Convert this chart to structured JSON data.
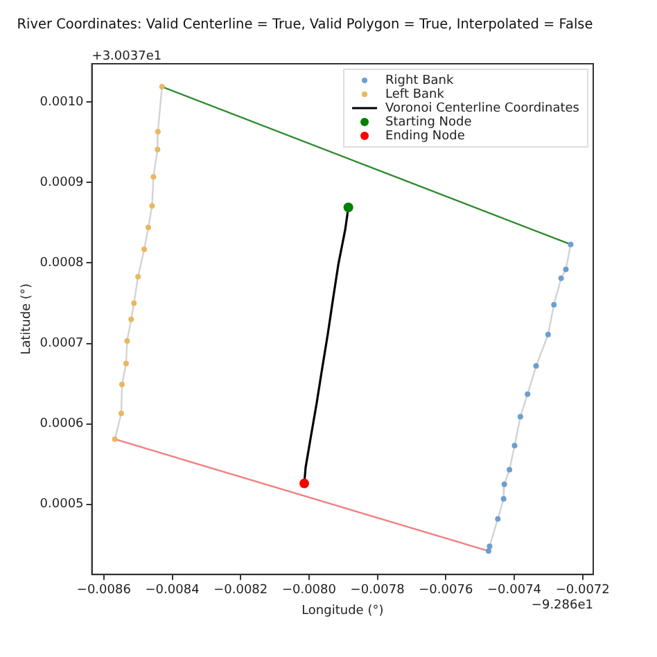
{
  "chart_data": {
    "type": "scatter",
    "title": "River Coordinates: Valid Centerline = True, Valid Polygon = True, Interpolated = False",
    "xlabel": "Longitude (°)",
    "ylabel": "Latitude (°)",
    "annotations": [
      "+3.0037e1",
      "−9.286e1"
    ],
    "xlim": [
      -0.008635,
      -0.007169
    ],
    "ylim": [
      0.000413,
      0.0010475
    ],
    "xticks": [
      {
        "value": -0.0086,
        "label": "−0.0086"
      },
      {
        "value": -0.0084,
        "label": "−0.0084"
      },
      {
        "value": -0.0082,
        "label": "−0.0082"
      },
      {
        "value": -0.008,
        "label": "−0.0080"
      },
      {
        "value": -0.0078,
        "label": "−0.0078"
      },
      {
        "value": -0.0076,
        "label": "−0.0076"
      },
      {
        "value": -0.0074,
        "label": "−0.0074"
      },
      {
        "value": -0.0072,
        "label": "−0.0072"
      }
    ],
    "yticks": [
      {
        "value": 0.0005,
        "label": "0.0005"
      },
      {
        "value": 0.0006,
        "label": "0.0006"
      },
      {
        "value": 0.0007,
        "label": "0.0007"
      },
      {
        "value": 0.0008,
        "label": "0.0008"
      },
      {
        "value": 0.0009,
        "label": "0.0009"
      },
      {
        "value": 0.001,
        "label": "0.0010"
      }
    ],
    "grid": false,
    "legend": "top right",
    "series": [
      {
        "type": "line",
        "color": "#d3d3d3",
        "marker": "none",
        "x": [
          -0.00843,
          -0.008442,
          -0.008443,
          -0.008455,
          -0.008459,
          -0.00847,
          -0.008482,
          -0.0085,
          -0.008512,
          -0.00852,
          -0.008532,
          -0.008535,
          -0.008547,
          -0.008549,
          -0.008568
        ],
        "values": [
          0.001019,
          0.000963,
          0.000941,
          0.000907,
          0.000871,
          0.000844,
          0.000817,
          0.000783,
          0.00075,
          0.00073,
          0.000703,
          0.000675,
          0.000649,
          0.000613,
          0.000581
        ]
      },
      {
        "type": "line",
        "color": "#d3d3d3",
        "marker": "none",
        "x": [
          -0.007235,
          -0.007249,
          -0.007263,
          -0.007284,
          -0.007301,
          -0.007336,
          -0.007361,
          -0.007382,
          -0.007399,
          -0.007414,
          -0.007429,
          -0.007431,
          -0.007448,
          -0.007472,
          -0.007475
        ],
        "values": [
          0.000823,
          0.000792,
          0.000781,
          0.000748,
          0.000711,
          0.000672,
          0.000637,
          0.000609,
          0.000573,
          0.000543,
          0.000525,
          0.000507,
          0.000482,
          0.000448,
          0.000442
        ]
      },
      {
        "type": "line",
        "color": "#2e8b2e",
        "marker": "none",
        "x": [
          -0.00843,
          -0.007235
        ],
        "values": [
          0.001019,
          0.000823
        ]
      },
      {
        "type": "line",
        "color": "#f08080",
        "marker": "none",
        "x": [
          -0.008568,
          -0.007475
        ],
        "values": [
          0.000581,
          0.000442
        ]
      },
      {
        "name": "Right Bank",
        "color": "#6a9fd0",
        "marker": "circle",
        "x": [
          -0.007235,
          -0.007249,
          -0.007263,
          -0.007284,
          -0.007301,
          -0.007336,
          -0.007361,
          -0.007382,
          -0.007399,
          -0.007414,
          -0.007429,
          -0.007431,
          -0.007448,
          -0.007472,
          -0.007475
        ],
        "values": [
          0.000823,
          0.000792,
          0.000781,
          0.000748,
          0.000711,
          0.000672,
          0.000637,
          0.000609,
          0.000573,
          0.000543,
          0.000525,
          0.000507,
          0.000482,
          0.000448,
          0.000442
        ]
      },
      {
        "name": "Left Bank",
        "color": "#e8b860",
        "marker": "circle",
        "x": [
          -0.00843,
          -0.008442,
          -0.008443,
          -0.008455,
          -0.008459,
          -0.00847,
          -0.008482,
          -0.0085,
          -0.008512,
          -0.00852,
          -0.008532,
          -0.008535,
          -0.008547,
          -0.008549,
          -0.008568
        ],
        "values": [
          0.001019,
          0.000963,
          0.000941,
          0.000907,
          0.000871,
          0.000844,
          0.000817,
          0.000783,
          0.00075,
          0.00073,
          0.000703,
          0.000675,
          0.000649,
          0.000613,
          0.000581
        ]
      },
      {
        "type": "line",
        "name": "Voronoi Centerline Coordinates",
        "color": "#000000",
        "marker": "none",
        "x": [
          -0.007885,
          -0.007894,
          -0.007914,
          -0.00793,
          -0.007945,
          -0.007962,
          -0.007978,
          -0.007996,
          -0.00801,
          -0.008014
        ],
        "values": [
          0.000869,
          0.000842,
          0.000799,
          0.000755,
          0.000712,
          0.000668,
          0.000625,
          0.000581,
          0.000546,
          0.000526
        ]
      },
      {
        "name": "Starting Node",
        "color": "#008000",
        "marker": "circle",
        "x": [
          -0.007885
        ],
        "values": [
          0.000869
        ]
      },
      {
        "name": "Ending Node",
        "color": "#ff0000",
        "marker": "circle",
        "x": [
          -0.008014
        ],
        "values": [
          0.000526
        ]
      }
    ]
  }
}
